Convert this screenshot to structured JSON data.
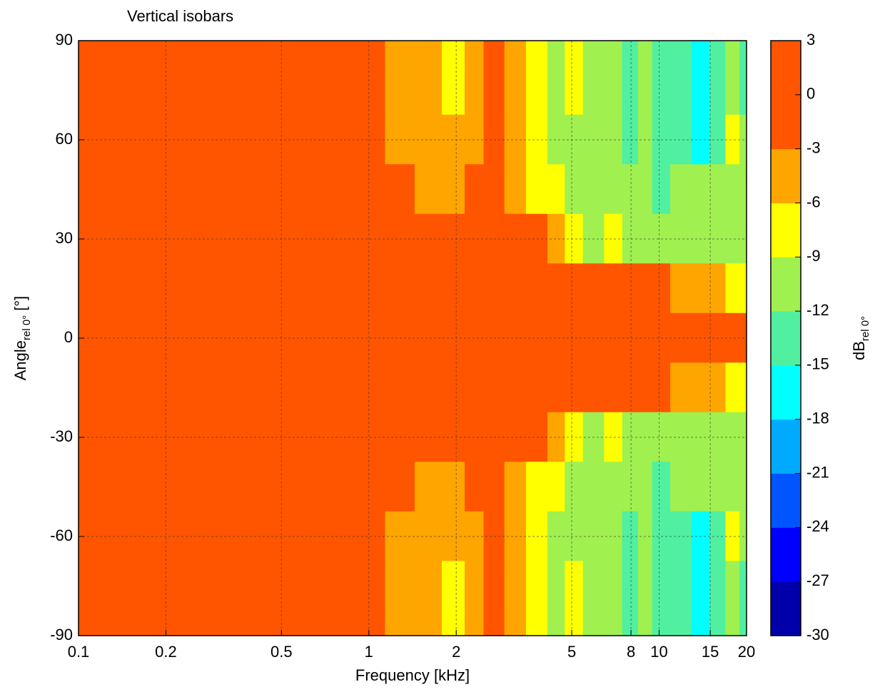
{
  "chart_data": {
    "type": "contour",
    "title": "Vertical isobars",
    "xlabel": "Frequency [kHz]",
    "ylabel": {
      "main": "Angle",
      "sub": "rel 0°",
      "unit": "[°]"
    },
    "xscale": "log",
    "grid": true,
    "xlim": [
      0.1,
      20
    ],
    "xticks": [
      0.1,
      0.2,
      0.5,
      1,
      2,
      5,
      8,
      10,
      15,
      20
    ],
    "ylim": [
      -90,
      90
    ],
    "yticks": [
      -90,
      -60,
      -30,
      0,
      30,
      60,
      90
    ],
    "x": [
      0.1,
      0.2,
      0.5,
      1,
      1.3,
      1.6,
      2,
      2.3,
      2.7,
      3.2,
      3.8,
      4.5,
      5,
      6,
      7,
      8,
      9,
      10,
      12,
      14,
      16,
      18,
      20
    ],
    "y": [
      90,
      75,
      60,
      45,
      30,
      15,
      0,
      -15,
      -30,
      -45,
      -60,
      -75,
      -90
    ],
    "z": [
      [
        -2,
        -2,
        -2,
        -2,
        -4,
        -5,
        -6.5,
        -4,
        -2,
        -4.5,
        -7.5,
        -10,
        -7.5,
        -11,
        -12,
        -13,
        -11,
        -13,
        -14,
        -18,
        -13,
        -12,
        -14
      ],
      [
        -2,
        -2,
        -2,
        -2,
        -4,
        -5.5,
        -6.5,
        -4.5,
        -2,
        -5,
        -8,
        -9.5,
        -8,
        -12,
        -11,
        -13,
        -12,
        -14,
        -15,
        -17,
        -13,
        -12,
        -13
      ],
      [
        -1.5,
        -1.5,
        -1.5,
        -1.5,
        -3.5,
        -5,
        -5.5,
        -4,
        -1.5,
        -6,
        -7.5,
        -9.5,
        -9.5,
        -12,
        -11,
        -13,
        -12,
        -13,
        -14,
        -16,
        -13,
        -8,
        -12
      ],
      [
        -1,
        -1,
        -1,
        -1,
        -2,
        -4,
        -5,
        -2,
        -1,
        -5,
        -7,
        -8,
        -10,
        -10,
        -11,
        -11,
        -12,
        -13,
        -11,
        -12,
        -11,
        -10,
        -11
      ],
      [
        -0.5,
        -0.5,
        -0.5,
        -0.5,
        -1,
        -1,
        -1.5,
        -1,
        -1,
        -2,
        -2.5,
        -3.5,
        -7,
        -9.5,
        -8,
        -10,
        -10,
        -10.5,
        -11,
        -11,
        -11,
        -11,
        -11
      ],
      [
        -0.5,
        -0.5,
        -0.5,
        -0.5,
        -0.5,
        -0.5,
        -0.5,
        -0.5,
        -0.5,
        -1,
        -1,
        -1,
        -1,
        -2,
        -2.5,
        -2,
        -2,
        -2,
        -4,
        -5,
        -6,
        -7,
        -9
      ],
      [
        0,
        0,
        0,
        0,
        0,
        0,
        0,
        0,
        0,
        0,
        0,
        0,
        0,
        0,
        0,
        0,
        0,
        0,
        0,
        0,
        0,
        0,
        0
      ],
      [
        -0.5,
        -0.5,
        -0.5,
        -0.5,
        -0.5,
        -0.5,
        -0.5,
        -0.5,
        -0.5,
        -1,
        -1,
        -1,
        -1,
        -2,
        -2.5,
        -2,
        -2,
        -2,
        -4,
        -5,
        -6,
        -7,
        -9
      ],
      [
        -0.5,
        -0.5,
        -0.5,
        -0.5,
        -1,
        -1,
        -1.5,
        -1,
        -1,
        -2,
        -2.5,
        -3.5,
        -7,
        -9.5,
        -8,
        -10,
        -10,
        -10.5,
        -11,
        -11,
        -11,
        -11,
        -11
      ],
      [
        -1,
        -1,
        -1,
        -1,
        -2,
        -4,
        -5,
        -2,
        -1,
        -5,
        -7,
        -8,
        -10,
        -10,
        -11,
        -11,
        -12,
        -13,
        -11,
        -12,
        -11,
        -10,
        -11
      ],
      [
        -1.5,
        -1.5,
        -1.5,
        -1.5,
        -3.5,
        -5,
        -5.5,
        -4,
        -1.5,
        -6,
        -7.5,
        -9.5,
        -9.5,
        -12,
        -11,
        -13,
        -12,
        -13,
        -14,
        -16,
        -13,
        -8,
        -12
      ],
      [
        -2,
        -2,
        -2,
        -2,
        -4,
        -5.5,
        -6.5,
        -4.5,
        -2,
        -5,
        -8,
        -9.5,
        -8,
        -12,
        -11,
        -13,
        -12,
        -14,
        -15,
        -17,
        -13,
        -12,
        -13
      ],
      [
        -2,
        -2,
        -2,
        -2,
        -4,
        -5,
        -6.5,
        -4,
        -2,
        -4.5,
        -7.5,
        -10,
        -7.5,
        -11,
        -12,
        -13,
        -11,
        -13,
        -14,
        -18,
        -13,
        -12,
        -14
      ]
    ],
    "colorbar": {
      "label": {
        "main": "dB",
        "sub": "rel 0°"
      },
      "levels": [
        -30,
        -27,
        -24,
        -21,
        -18,
        -15,
        -12,
        -9,
        -6,
        -3,
        0,
        3
      ],
      "colors": [
        "#0000aa",
        "#0000ff",
        "#0055ff",
        "#00aaff",
        "#00ffff",
        "#50f0a0",
        "#a0f050",
        "#ffff00",
        "#ffa500",
        "#ff5500",
        "#ff5500"
      ],
      "ticks": [
        3,
        0,
        -3,
        -6,
        -9,
        -12,
        -15,
        -18,
        -21,
        -24,
        -27,
        -30
      ]
    }
  }
}
